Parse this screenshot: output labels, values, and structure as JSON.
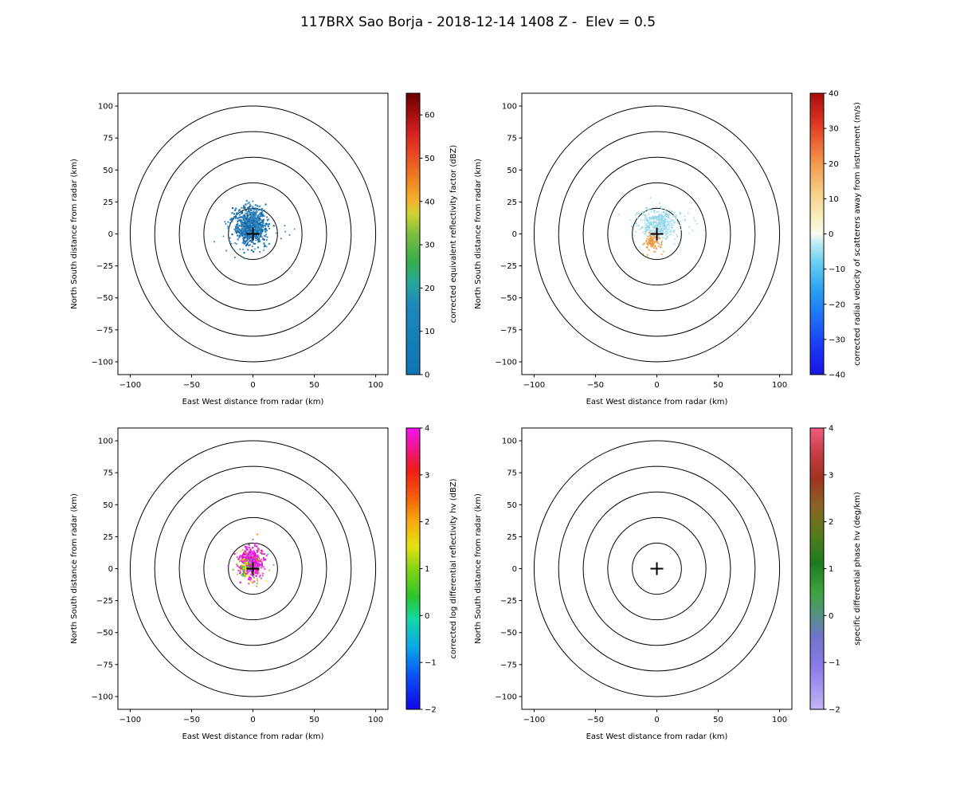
{
  "chart_data": {
    "type": "radar_ppi_multipanel",
    "title": "117BRX Sao Borja - 2018-12-14 1408 Z -  Elev = 0.5",
    "radar_site": "117BRX Sao Borja",
    "scan_time": "2018-12-14 1408 Z",
    "elevation_deg": 0.5,
    "panels": [
      {
        "name": "reflectivity",
        "xlabel": "East West distance from radar (km)",
        "ylabel": "North South distance from radar (km)",
        "xlim": [
          -110,
          110
        ],
        "ylim": [
          -110,
          110
        ],
        "xticks": [
          -100,
          -50,
          0,
          50,
          100
        ],
        "yticks": [
          -100,
          -75,
          -50,
          -25,
          0,
          25,
          50,
          75,
          100
        ],
        "range_rings_km": [
          20,
          40,
          60,
          80,
          100
        ],
        "center_marker": "+",
        "colorbar": {
          "label": "corrected equivalent reflectivity factor (dBZ)",
          "min": 0,
          "max": 65,
          "ticks": [
            0,
            10,
            20,
            30,
            40,
            50,
            60
          ],
          "gradient": [
            [
              0,
              "#0d75b5"
            ],
            [
              0.25,
              "#1e88bc"
            ],
            [
              0.33,
              "#28a896"
            ],
            [
              0.4,
              "#35ad4c"
            ],
            [
              0.5,
              "#7dbf3e"
            ],
            [
              0.57,
              "#cdd233"
            ],
            [
              0.62,
              "#f5b02e"
            ],
            [
              0.7,
              "#ef7f20"
            ],
            [
              0.78,
              "#e84b24"
            ],
            [
              0.86,
              "#d42020"
            ],
            [
              0.93,
              "#a30d0d"
            ],
            [
              1,
              "#6b0000"
            ]
          ]
        },
        "echoes": [
          {
            "n": 650,
            "cx": -2,
            "cy": 6,
            "sx": 6,
            "sy": 6.5,
            "size": 2.2,
            "seed": 11,
            "colors": [
              "#2b7fba",
              "#1e72b0",
              "#3a8cc4",
              "#15639f",
              "#2b7fba",
              "#3f93c9",
              "#1b6aaa"
            ]
          },
          {
            "n": 140,
            "cx": 0,
            "cy": 2,
            "sx": 10,
            "sy": 9,
            "size": 1.7,
            "seed": 12,
            "colors": [
              "#2b7fba",
              "#1e72b0",
              "#3a8cc4",
              "#15639f"
            ]
          }
        ]
      },
      {
        "name": "velocity",
        "xlabel": "East West distance from radar (km)",
        "ylabel": "North South distance from radar (km)",
        "xlim": [
          -110,
          110
        ],
        "ylim": [
          -110,
          110
        ],
        "xticks": [
          -100,
          -50,
          0,
          50,
          100
        ],
        "yticks": [
          -100,
          -75,
          -50,
          -25,
          0,
          25,
          50,
          75,
          100
        ],
        "range_rings_km": [
          20,
          40,
          60,
          80,
          100
        ],
        "center_marker": "+",
        "colorbar": {
          "label": "corrected radial velocity of scatterers away from instrument (m/s)",
          "min": -40,
          "max": 40,
          "ticks": [
            -40,
            -30,
            -20,
            -10,
            0,
            10,
            20,
            30,
            40
          ],
          "gradient": [
            [
              0,
              "#1c14e0"
            ],
            [
              0.08,
              "#1a30f0"
            ],
            [
              0.2,
              "#1e6ef8"
            ],
            [
              0.3,
              "#2ba0f0"
            ],
            [
              0.4,
              "#6cd0f0"
            ],
            [
              0.47,
              "#c2eef2"
            ],
            [
              0.5,
              "#fbfbef"
            ],
            [
              0.56,
              "#f8eebe"
            ],
            [
              0.65,
              "#f7cd84"
            ],
            [
              0.74,
              "#f2a055"
            ],
            [
              0.82,
              "#ea6a35"
            ],
            [
              0.9,
              "#d93322"
            ],
            [
              1,
              "#a80d0d"
            ]
          ]
        },
        "echoes": [
          {
            "n": 300,
            "cx": 1,
            "cy": 8,
            "sx": 7,
            "sy": 5,
            "size": 2.2,
            "seed": 21,
            "colors": [
              "#aadfee",
              "#98d8e8",
              "#c0eaf3",
              "#8ad0e4",
              "#b4e5f0"
            ]
          },
          {
            "n": 90,
            "cx": 6,
            "cy": 9,
            "sx": 12,
            "sy": 7,
            "size": 1.7,
            "seed": 22,
            "colors": [
              "#aadfee",
              "#98d8e8",
              "#c0eaf3"
            ]
          },
          {
            "n": 70,
            "cx": -4,
            "cy": -6,
            "sx": 3.5,
            "sy": 3,
            "size": 2.2,
            "seed": 23,
            "colors": [
              "#f2b26a",
              "#eda04e",
              "#e8933c",
              "#f6c488"
            ]
          },
          {
            "n": 18,
            "cx": -2,
            "cy": -8,
            "sx": 7,
            "sy": 4,
            "size": 1.6,
            "seed": 24,
            "colors": [
              "#eda04e",
              "#e8933c"
            ]
          }
        ]
      },
      {
        "name": "differential-reflectivity",
        "xlabel": "East West distance from radar (km)",
        "ylabel": "North South distance from radar (km)",
        "xlim": [
          -110,
          110
        ],
        "ylim": [
          -110,
          110
        ],
        "xticks": [
          -100,
          -50,
          0,
          50,
          100
        ],
        "yticks": [
          -100,
          -75,
          -50,
          -25,
          0,
          25,
          50,
          75,
          100
        ],
        "range_rings_km": [
          20,
          40,
          60,
          80,
          100
        ],
        "center_marker": "+",
        "colorbar": {
          "label": "corrected log differential reflectivity hv (dBZ)",
          "min": -2,
          "max": 4,
          "ticks": [
            -2,
            -1,
            0,
            1,
            2,
            3,
            4
          ],
          "gradient": [
            [
              0,
              "#1205e8"
            ],
            [
              0.12,
              "#0a52f5"
            ],
            [
              0.22,
              "#0aa6e8"
            ],
            [
              0.32,
              "#14d8a8"
            ],
            [
              0.4,
              "#2cc42c"
            ],
            [
              0.5,
              "#86d414"
            ],
            [
              0.58,
              "#e6e212"
            ],
            [
              0.67,
              "#f7a80e"
            ],
            [
              0.76,
              "#f55a0a"
            ],
            [
              0.85,
              "#ee1c16"
            ],
            [
              0.93,
              "#ee1690"
            ],
            [
              1,
              "#f312f3"
            ]
          ]
        },
        "echoes": [
          {
            "n": 360,
            "cx": -1,
            "cy": 5,
            "sx": 4.5,
            "sy": 5,
            "size": 2.2,
            "seed": 31,
            "colors": [
              "#f020ee",
              "#e316d6",
              "#f545ec",
              "#cf10bc",
              "#ff35f5"
            ]
          },
          {
            "n": 80,
            "cx": -1,
            "cy": 4,
            "sx": 8,
            "sy": 7.5,
            "size": 1.7,
            "seed": 32,
            "colors": [
              "#f5e014",
              "#46c81e",
              "#10c8dc",
              "#f53014",
              "#9a35e0",
              "#f59010",
              "#f020ee"
            ]
          },
          {
            "n": 45,
            "cx": -6.5,
            "cy": 1.5,
            "sx": 2.5,
            "sy": 3,
            "size": 2,
            "seed": 33,
            "colors": [
              "#cbdc14",
              "#8cc818",
              "#f5e014",
              "#46c81e"
            ]
          },
          {
            "n": 16,
            "cx": 1,
            "cy": -9,
            "sx": 4,
            "sy": 2.5,
            "size": 1.7,
            "seed": 34,
            "colors": [
              "#f020ee",
              "#f5e014",
              "#46c81e"
            ]
          }
        ]
      },
      {
        "name": "specific-differential-phase",
        "xlabel": "East West distance from radar (km)",
        "ylabel": "North South distance from radar (km)",
        "xlim": [
          -110,
          110
        ],
        "ylim": [
          -110,
          110
        ],
        "xticks": [
          -100,
          -50,
          0,
          50,
          100
        ],
        "yticks": [
          -100,
          -75,
          -50,
          -25,
          0,
          25,
          50,
          75,
          100
        ],
        "range_rings_km": [
          20,
          40,
          60,
          80,
          100
        ],
        "center_marker": "+",
        "colorbar": {
          "label": "specific differential phase hv (deg/km)",
          "min": -2,
          "max": 4,
          "ticks": [
            -2,
            -1,
            0,
            1,
            2,
            3,
            4
          ],
          "gradient": [
            [
              0,
              "#c3b5f4"
            ],
            [
              0.15,
              "#8d7ae8"
            ],
            [
              0.26,
              "#6f74c8"
            ],
            [
              0.34,
              "#55947c"
            ],
            [
              0.42,
              "#3da13d"
            ],
            [
              0.52,
              "#1f7a1f"
            ],
            [
              0.62,
              "#557a1e"
            ],
            [
              0.72,
              "#8a6426"
            ],
            [
              0.82,
              "#9e3520"
            ],
            [
              0.9,
              "#c13a40"
            ],
            [
              1,
              "#ef5d7f"
            ]
          ]
        },
        "echoes": []
      }
    ]
  }
}
